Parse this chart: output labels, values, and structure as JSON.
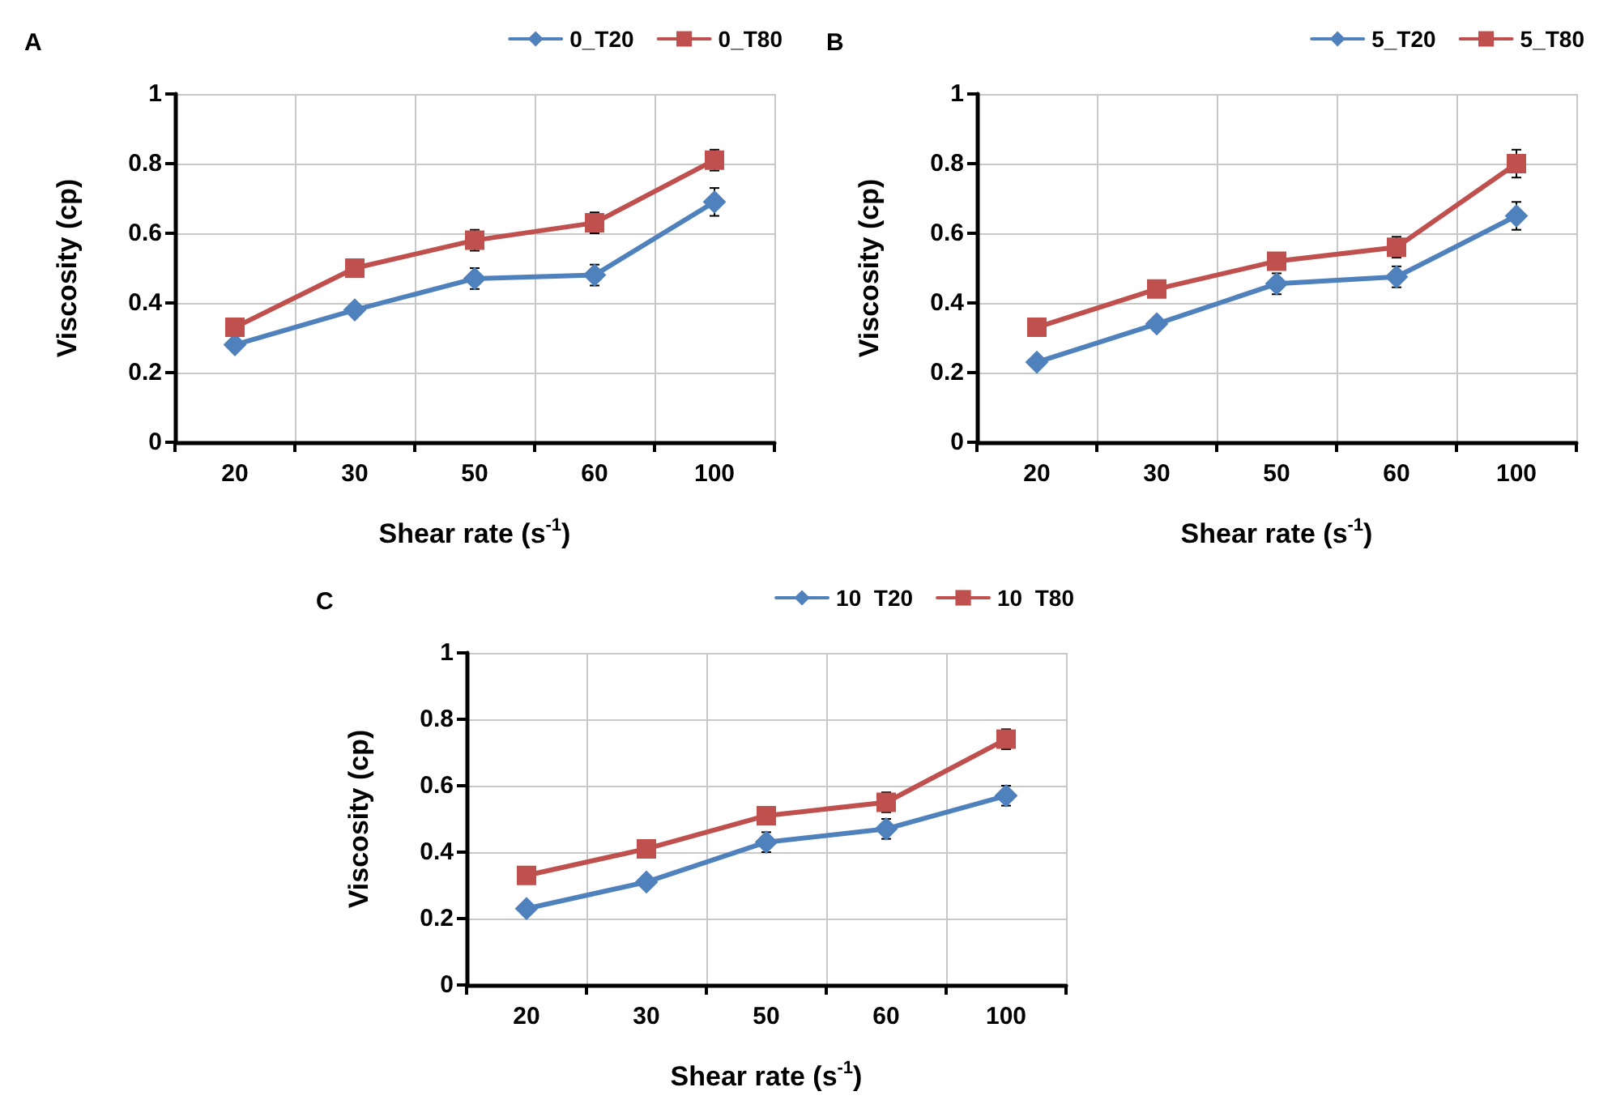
{
  "chart_data": [
    {
      "type": "line",
      "title": "A",
      "xlabel": "Shear rate (s$^{-1}$)",
      "ylabel": "Viscosity (cp)",
      "categories": [
        "20",
        "30",
        "50",
        "60",
        "100"
      ],
      "ylim": [
        0,
        1
      ],
      "yticks": [
        0,
        0.2,
        0.4,
        0.6,
        0.8,
        1
      ],
      "grid": true,
      "legend": "top right",
      "series": [
        {
          "name": "0_T20",
          "color": "#4f81bd",
          "marker": "diamond",
          "values": [
            0.28,
            0.38,
            0.47,
            0.48,
            0.69
          ],
          "errors": [
            null,
            null,
            0.03,
            0.03,
            0.04
          ]
        },
        {
          "name": "0_T80",
          "color": "#c0504d",
          "marker": "square",
          "values": [
            0.33,
            0.5,
            0.58,
            0.63,
            0.81
          ],
          "errors": [
            null,
            null,
            0.03,
            0.03,
            0.03
          ]
        }
      ]
    },
    {
      "type": "line",
      "title": "B",
      "xlabel": "Shear rate (s$^{-1}$)",
      "ylabel": "Viscosity (cp)",
      "categories": [
        "20",
        "30",
        "50",
        "60",
        "100"
      ],
      "ylim": [
        0,
        1
      ],
      "yticks": [
        0,
        0.2,
        0.4,
        0.6,
        0.8,
        1
      ],
      "grid": true,
      "legend": "top right",
      "series": [
        {
          "name": "5_T20",
          "color": "#4f81bd",
          "marker": "diamond",
          "values": [
            0.23,
            0.34,
            0.455,
            0.475,
            0.65
          ],
          "errors": [
            null,
            null,
            0.03,
            0.03,
            0.04
          ]
        },
        {
          "name": "5_T80",
          "color": "#c0504d",
          "marker": "square",
          "values": [
            0.33,
            0.44,
            0.52,
            0.56,
            0.8
          ],
          "errors": [
            null,
            null,
            null,
            0.03,
            0.04
          ]
        }
      ]
    },
    {
      "type": "line",
      "title": "C",
      "xlabel": "Shear rate (s$^{-1}$)",
      "ylabel": "Viscosity (cp)",
      "categories": [
        "20",
        "30",
        "50",
        "60",
        "100"
      ],
      "ylim": [
        0,
        1
      ],
      "yticks": [
        0,
        0.2,
        0.4,
        0.6,
        0.8,
        1
      ],
      "grid": true,
      "legend": "top right",
      "series": [
        {
          "name": "10  T20",
          "color": "#4f81bd",
          "marker": "diamond",
          "values": [
            0.23,
            0.31,
            0.43,
            0.47,
            0.57
          ],
          "errors": [
            null,
            null,
            0.03,
            0.03,
            0.03
          ]
        },
        {
          "name": "10  T80",
          "color": "#c0504d",
          "marker": "square",
          "values": [
            0.33,
            0.41,
            0.51,
            0.55,
            0.74
          ],
          "errors": [
            null,
            null,
            null,
            0.03,
            0.03
          ]
        }
      ]
    }
  ]
}
